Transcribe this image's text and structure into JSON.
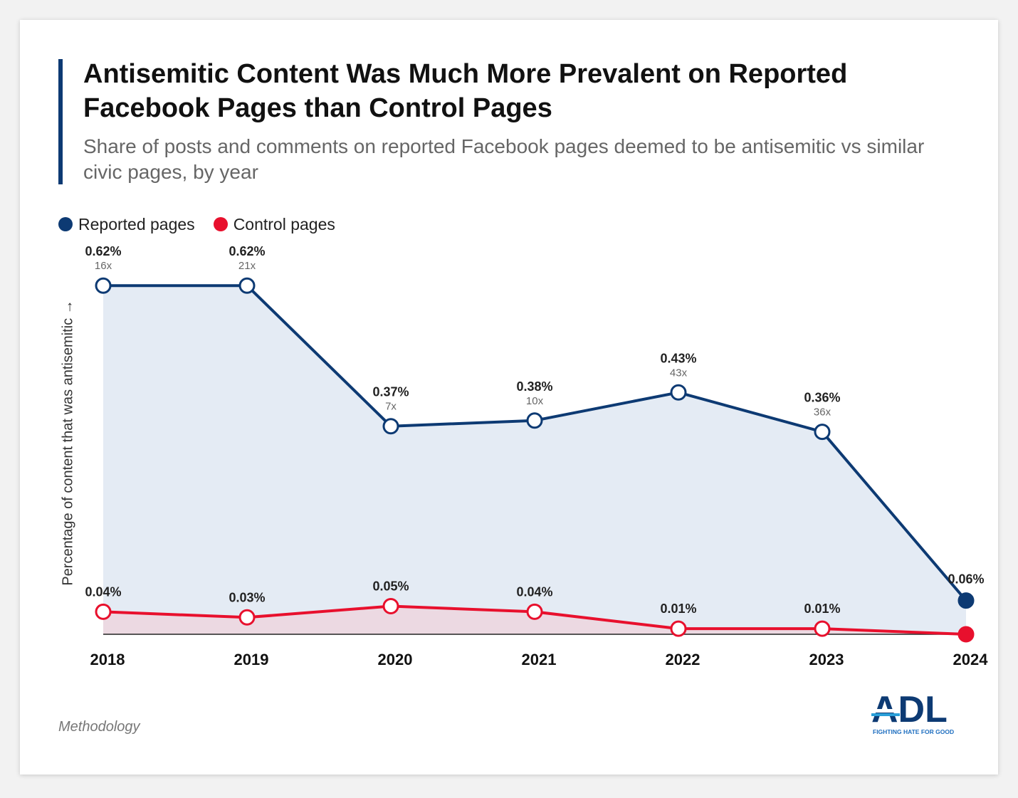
{
  "header": {
    "title": "Antisemitic Content Was Much More Prevalent on Reported Facebook Pages than Control Pages",
    "subtitle": "Share of posts and comments on reported Facebook pages deemed to be antisemitic vs similar civic pages, by year"
  },
  "footer": {
    "methodology_label": "Methodology",
    "logo_text": "ADL",
    "logo_tagline": "FIGHTING HATE FOR GOOD"
  },
  "colors": {
    "reported": "#0d3a73",
    "control": "#e8102d",
    "reported_fill": "#e4ebf4",
    "control_fill": "#ecd9e2",
    "title_bar": "#0d3a73"
  },
  "chart_data": {
    "type": "line",
    "ylabel": "Percentage of content that was antisemitic →",
    "legend_position": "top-left",
    "grid": false,
    "categories": [
      "2018",
      "2019",
      "2020",
      "2021",
      "2022",
      "2023",
      "2024"
    ],
    "series": [
      {
        "name": "Reported pages",
        "values": [
          0.62,
          0.62,
          0.37,
          0.38,
          0.43,
          0.36,
          0.06
        ],
        "labels": [
          "0.62%",
          "0.62%",
          "0.37%",
          "0.38%",
          "0.43%",
          "0.36%",
          "0.06%"
        ],
        "multipliers": [
          "16x",
          "21x",
          "7x",
          "10x",
          "43x",
          "36x",
          ""
        ]
      },
      {
        "name": "Control pages",
        "values": [
          0.04,
          0.03,
          0.05,
          0.04,
          0.01,
          0.01,
          0.0
        ],
        "labels": [
          "0.04%",
          "0.03%",
          "0.05%",
          "0.04%",
          "0.01%",
          "0.01%",
          ""
        ]
      }
    ]
  }
}
